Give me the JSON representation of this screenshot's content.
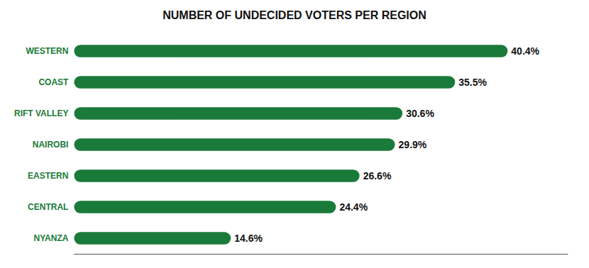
{
  "chart_data": {
    "type": "bar",
    "orientation": "horizontal",
    "title": "NUMBER OF UNDECIDED VOTERS PER REGION",
    "categories": [
      "WESTERN",
      "COAST",
      "RIFT VALLEY",
      "NAIROBI",
      "EASTERN",
      "CENTRAL",
      "NYANZA"
    ],
    "values": [
      40.4,
      35.5,
      30.6,
      29.9,
      26.6,
      24.4,
      14.6
    ],
    "value_labels": [
      "40.4%",
      "35.5%",
      "30.6%",
      "29.9%",
      "26.6%",
      "24.4%",
      "14.6%"
    ],
    "color": "#1a7a3a",
    "xlim": [
      0,
      46
    ],
    "data_labels": true,
    "tick_labels": "y",
    "grid": false
  }
}
